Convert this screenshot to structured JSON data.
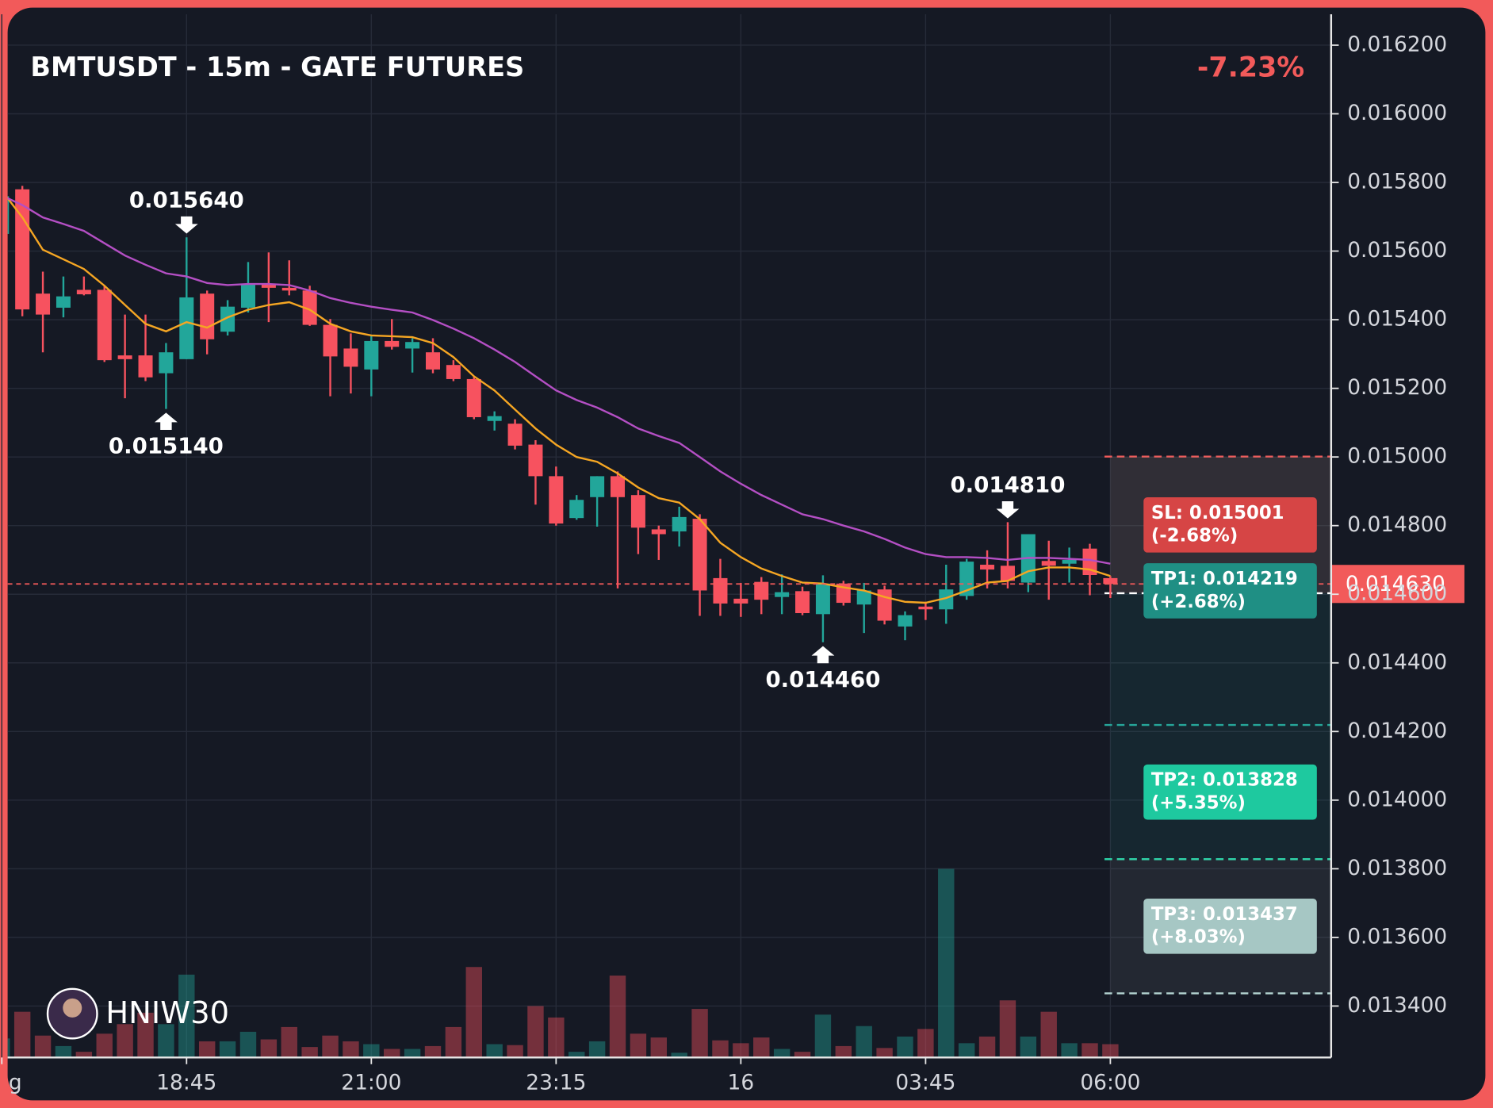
{
  "chart_data": {
    "type": "candlestick",
    "title": "BMTUSDT - 15m - GATE FUTURES",
    "change": "-7.23%",
    "watermark": "HNIW30",
    "categories": [
      "g",
      null,
      null,
      null,
      null,
      null,
      null,
      null,
      null,
      "18:45",
      null,
      null,
      null,
      null,
      null,
      null,
      null,
      null,
      "21:00",
      null,
      null,
      null,
      null,
      null,
      null,
      null,
      null,
      "23:15",
      null,
      null,
      null,
      null,
      null,
      null,
      null,
      null,
      "16",
      null,
      null,
      null,
      null,
      null,
      null,
      null,
      null,
      "03:45",
      null,
      null,
      null,
      null,
      null,
      null,
      null,
      null,
      "06:00"
    ],
    "open": [
      0.01565,
      0.01578,
      0.015476,
      0.015435,
      0.015487,
      0.015487,
      0.015296,
      0.015296,
      0.015244,
      0.015285,
      0.015476,
      0.015365,
      0.015435,
      0.015504,
      0.015493,
      0.015485,
      0.015385,
      0.015316,
      0.015255,
      0.015338,
      0.015316,
      0.015305,
      0.015268,
      0.015227,
      0.015105,
      0.015097,
      0.015036,
      0.014944,
      0.014822,
      0.014883,
      0.014944,
      0.014889,
      0.014789,
      0.014783,
      0.01482,
      0.014647,
      0.014587,
      0.014636,
      0.014592,
      0.014609,
      0.014542,
      0.014631,
      0.01457,
      0.014614,
      0.014506,
      0.014564,
      0.014556,
      0.014595,
      0.014686,
      0.014683,
      0.014634,
      0.014697,
      0.014689,
      0.014733,
      0.014647
    ],
    "high": [
      0.01578,
      0.01579,
      0.01554,
      0.015526,
      0.015526,
      0.015499,
      0.015415,
      0.015415,
      0.015332,
      0.01564,
      0.015485,
      0.015457,
      0.015568,
      0.015596,
      0.015573,
      0.015499,
      0.015402,
      0.01536,
      0.015352,
      0.015402,
      0.015346,
      0.015346,
      0.015282,
      0.015235,
      0.015133,
      0.01511,
      0.015049,
      0.014972,
      0.014889,
      0.014944,
      0.014958,
      0.014903,
      0.0148,
      0.014855,
      0.014833,
      0.014703,
      0.014633,
      0.01465,
      0.014658,
      0.014622,
      0.014655,
      0.014639,
      0.014633,
      0.014625,
      0.01455,
      0.014578,
      0.014686,
      0.014703,
      0.014728,
      0.01481,
      0.014775,
      0.014756,
      0.014736,
      0.014747,
      0.014653
    ],
    "low": [
      0.01565,
      0.01541,
      0.015305,
      0.015407,
      0.015471,
      0.015277,
      0.015171,
      0.015221,
      0.01514,
      0.015285,
      0.015299,
      0.015354,
      0.015421,
      0.015393,
      0.015471,
      0.015382,
      0.015177,
      0.015185,
      0.015177,
      0.015313,
      0.015246,
      0.015244,
      0.015221,
      0.01511,
      0.015077,
      0.015022,
      0.014861,
      0.0148,
      0.014817,
      0.014797,
      0.014617,
      0.014717,
      0.0147,
      0.014739,
      0.014537,
      0.014537,
      0.014534,
      0.014542,
      0.014542,
      0.014539,
      0.01446,
      0.014567,
      0.014487,
      0.014512,
      0.014466,
      0.014525,
      0.014514,
      0.014584,
      0.014617,
      0.014617,
      0.014606,
      0.014584,
      0.014634,
      0.014597,
      0.014589
    ],
    "close": [
      0.01576,
      0.01543,
      0.015415,
      0.015468,
      0.015474,
      0.015282,
      0.015285,
      0.015232,
      0.015305,
      0.015465,
      0.015343,
      0.015438,
      0.015504,
      0.015493,
      0.015485,
      0.015385,
      0.015293,
      0.015263,
      0.015338,
      0.015321,
      0.015335,
      0.015255,
      0.015227,
      0.015116,
      0.015119,
      0.015033,
      0.014944,
      0.014806,
      0.014875,
      0.014944,
      0.014883,
      0.014794,
      0.014775,
      0.014825,
      0.014611,
      0.014573,
      0.014573,
      0.014584,
      0.014606,
      0.014545,
      0.014631,
      0.014575,
      0.014611,
      0.014523,
      0.014539,
      0.014556,
      0.014614,
      0.014695,
      0.014672,
      0.014639,
      0.014775,
      0.014683,
      0.0147,
      0.014656,
      0.01463
    ],
    "volume": [
      20,
      48,
      23,
      12,
      6,
      25,
      35,
      47,
      35,
      87,
      17,
      17,
      27,
      19,
      32,
      11,
      23,
      17,
      14,
      9,
      9,
      12,
      32,
      95,
      14,
      13,
      54,
      42,
      6,
      17,
      86,
      25,
      21,
      5,
      51,
      18,
      15,
      21,
      9,
      6,
      45,
      12,
      33,
      10,
      22,
      30,
      198,
      15,
      22,
      60,
      22,
      48,
      15,
      15,
      14
    ],
    "up_color": "#22a69a",
    "down_color": "#f7525f",
    "overlays": [
      {
        "color": "#f5a623",
        "values": [
          0.015776,
          0.015698,
          0.015604,
          0.015576,
          0.015548,
          0.015499,
          0.015443,
          0.015388,
          0.015366,
          0.015393,
          0.015377,
          0.015407,
          0.015429,
          0.015443,
          0.015451,
          0.015429,
          0.015388,
          0.015366,
          0.015354,
          0.015352,
          0.015349,
          0.015332,
          0.015291,
          0.015235,
          0.015194,
          0.015138,
          0.015083,
          0.015036,
          0.015,
          0.014986,
          0.014952,
          0.014911,
          0.01488,
          0.014867,
          0.014819,
          0.01475,
          0.014708,
          0.014675,
          0.014653,
          0.014634,
          0.014631,
          0.01462,
          0.014611,
          0.014592,
          0.014578,
          0.014575,
          0.014589,
          0.014611,
          0.014634,
          0.014639,
          0.014667,
          0.014678,
          0.014678,
          0.014672,
          0.014653
        ]
      },
      {
        "color": "#b44fc4",
        "values": [
          0.015762,
          0.015734,
          0.015698,
          0.015679,
          0.015659,
          0.015623,
          0.015587,
          0.01556,
          0.015535,
          0.015526,
          0.015507,
          0.015501,
          0.015504,
          0.015504,
          0.015501,
          0.015485,
          0.015463,
          0.015449,
          0.015438,
          0.015429,
          0.015421,
          0.015399,
          0.015374,
          0.015346,
          0.015313,
          0.015277,
          0.015235,
          0.015194,
          0.015166,
          0.015144,
          0.015116,
          0.015083,
          0.015061,
          0.015041,
          0.015,
          0.014958,
          0.014922,
          0.014889,
          0.014861,
          0.014833,
          0.014819,
          0.0148,
          0.014783,
          0.014761,
          0.014736,
          0.014717,
          0.014708,
          0.014708,
          0.014706,
          0.0147,
          0.014706,
          0.014706,
          0.014703,
          0.0147,
          0.014689
        ]
      }
    ],
    "markers": [
      {
        "index": 9,
        "kind": "high",
        "label": "0.015640"
      },
      {
        "index": 8,
        "kind": "low",
        "label": "0.015140"
      },
      {
        "index": 40,
        "kind": "low",
        "label": "0.014460"
      },
      {
        "index": 49,
        "kind": "high",
        "label": "0.014810"
      }
    ],
    "last_price": {
      "value": 0.01463,
      "label": "0.014630"
    },
    "entry": 0.014603,
    "levels": [
      {
        "label": "SL: 0.015001",
        "change": "(-2.68%)",
        "value": 0.015001,
        "color": "#d64545",
        "line_color": "#f25a5a",
        "zone": "rgba(242,90,90,0.13)"
      },
      {
        "label": "TP1: 0.014219",
        "change": "(+2.68%)",
        "value": 0.014219,
        "color": "#1f8f84",
        "line_color": "#26a69a",
        "zone": "rgba(38,166,154,0.10)"
      },
      {
        "label": "TP2: 0.013828",
        "change": "(+5.35%)",
        "value": 0.013828,
        "color": "#1ec99f",
        "line_color": "#2bd1a6",
        "zone": "rgba(38,166,154,0.10)"
      },
      {
        "label": "TP3: 0.013437",
        "change": "(+8.03%)",
        "value": 0.013437,
        "color": "#a6c7c4",
        "line_color": "#b4d4d2",
        "zone": "rgba(200,215,215,0.08)"
      }
    ],
    "ylim": [
      0.01325,
      0.01629
    ],
    "yticks": [
      {
        "value": 0.0162,
        "label": "0.016200"
      },
      {
        "value": 0.016,
        "label": "0.016000"
      },
      {
        "value": 0.0158,
        "label": "0.015800"
      },
      {
        "value": 0.0156,
        "label": "0.015600"
      },
      {
        "value": 0.0154,
        "label": "0.015400"
      },
      {
        "value": 0.0152,
        "label": "0.015200"
      },
      {
        "value": 0.015,
        "label": "0.015000"
      },
      {
        "value": 0.0148,
        "label": "0.014800"
      },
      {
        "value": 0.0146,
        "label": "0.014600"
      },
      {
        "value": 0.0144,
        "label": "0.014400"
      },
      {
        "value": 0.0142,
        "label": "0.014200"
      },
      {
        "value": 0.014,
        "label": "0.014000"
      },
      {
        "value": 0.0138,
        "label": "0.013800"
      },
      {
        "value": 0.0136,
        "label": "0.013600"
      },
      {
        "value": 0.0134,
        "label": "0.013400"
      }
    ],
    "grid": true
  }
}
